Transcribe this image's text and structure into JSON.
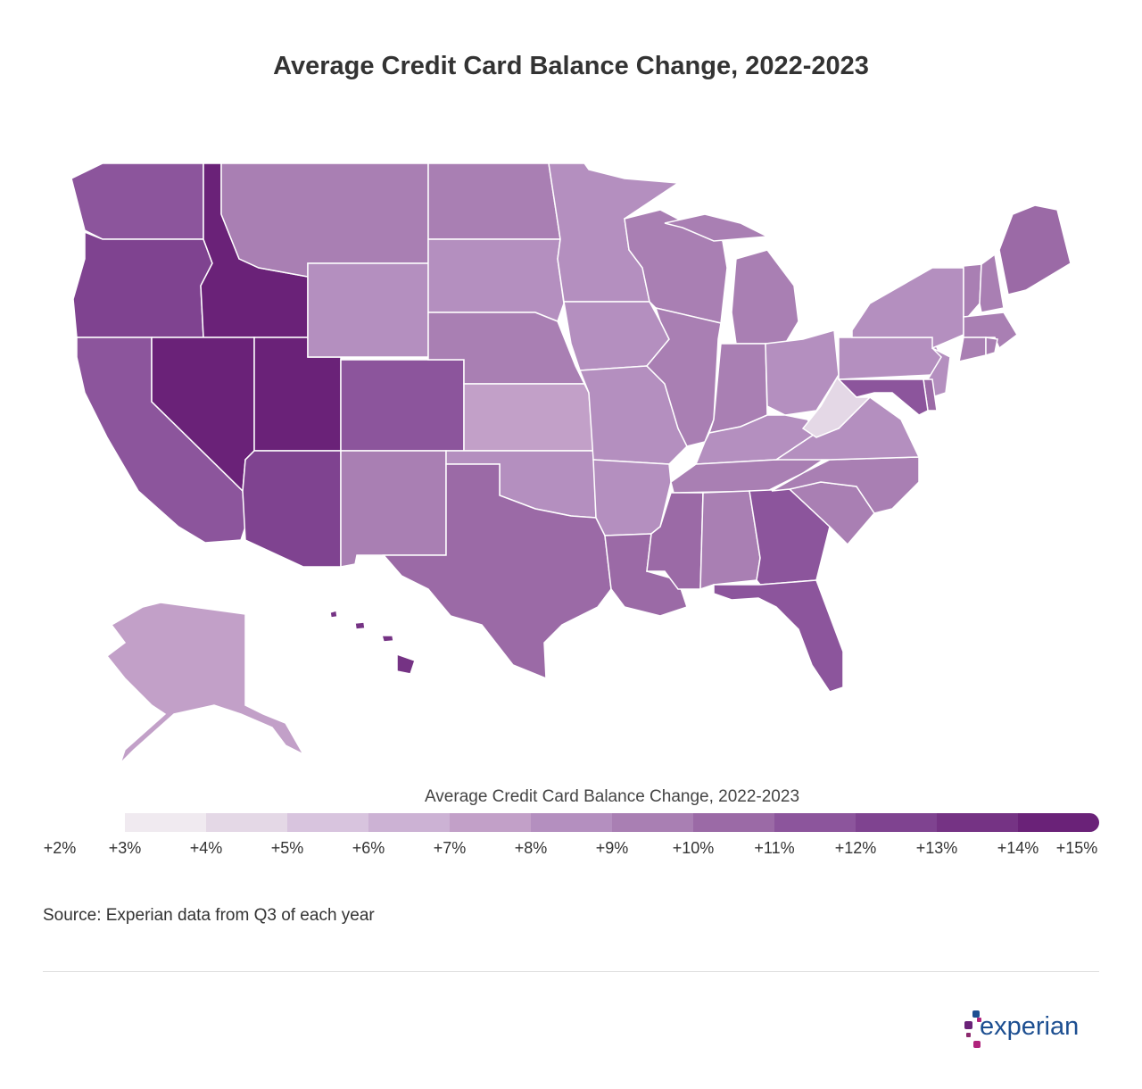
{
  "title": "Average Credit Card Balance Change, 2022-2023",
  "legend": {
    "title": "Average Credit Card Balance Change, 2022-2023",
    "colors": [
      "#f0eaf0",
      "#e4d8e6",
      "#d8c4de",
      "#ccb2d4",
      "#c2a0c8",
      "#b48fbf",
      "#a97fb3",
      "#9b6aa6",
      "#8c559c",
      "#7f4390",
      "#753384",
      "#6a2278"
    ],
    "ticks": [
      "+2%",
      "+3%",
      "+4%",
      "+5%",
      "+6%",
      "+7%",
      "+8%",
      "+9%",
      "+10%",
      "+11%",
      "+12%",
      "+13%",
      "+14%",
      "+15%"
    ]
  },
  "chart_data": {
    "type": "choropleth",
    "unit": "% change",
    "values": {
      "WA": 11,
      "OR": 12,
      "CA": 11,
      "ID": 14,
      "NV": 14,
      "UT": 14,
      "AZ": 12,
      "MT": 9,
      "WY": 8,
      "CO": 11,
      "NM": 9,
      "ND": 9,
      "SD": 8,
      "NE": 9,
      "KS": 7,
      "OK": 8,
      "TX": 10,
      "MN": 8,
      "IA": 8,
      "MO": 8,
      "AR": 8,
      "LA": 10,
      "WI": 9,
      "IL": 9,
      "MI": 9,
      "IN": 9,
      "OH": 8,
      "KY": 8,
      "TN": 9,
      "MS": 10,
      "AL": 9,
      "GA": 11,
      "FL": 11,
      "SC": 9,
      "NC": 9,
      "VA": 8,
      "WV": 4,
      "PA": 8,
      "NY": 8,
      "VT": 9,
      "NH": 9,
      "ME": 10,
      "MA": 9,
      "CT": 9,
      "RI": 9,
      "NJ": 8,
      "DE": 10,
      "MD": 11,
      "AK": 7,
      "HI": 13
    }
  },
  "source": "Source: Experian data from Q3 of each year",
  "logo": {
    "text": "experian",
    "colors": [
      "#6a2278",
      "#b0237c",
      "#1d4f91"
    ]
  }
}
